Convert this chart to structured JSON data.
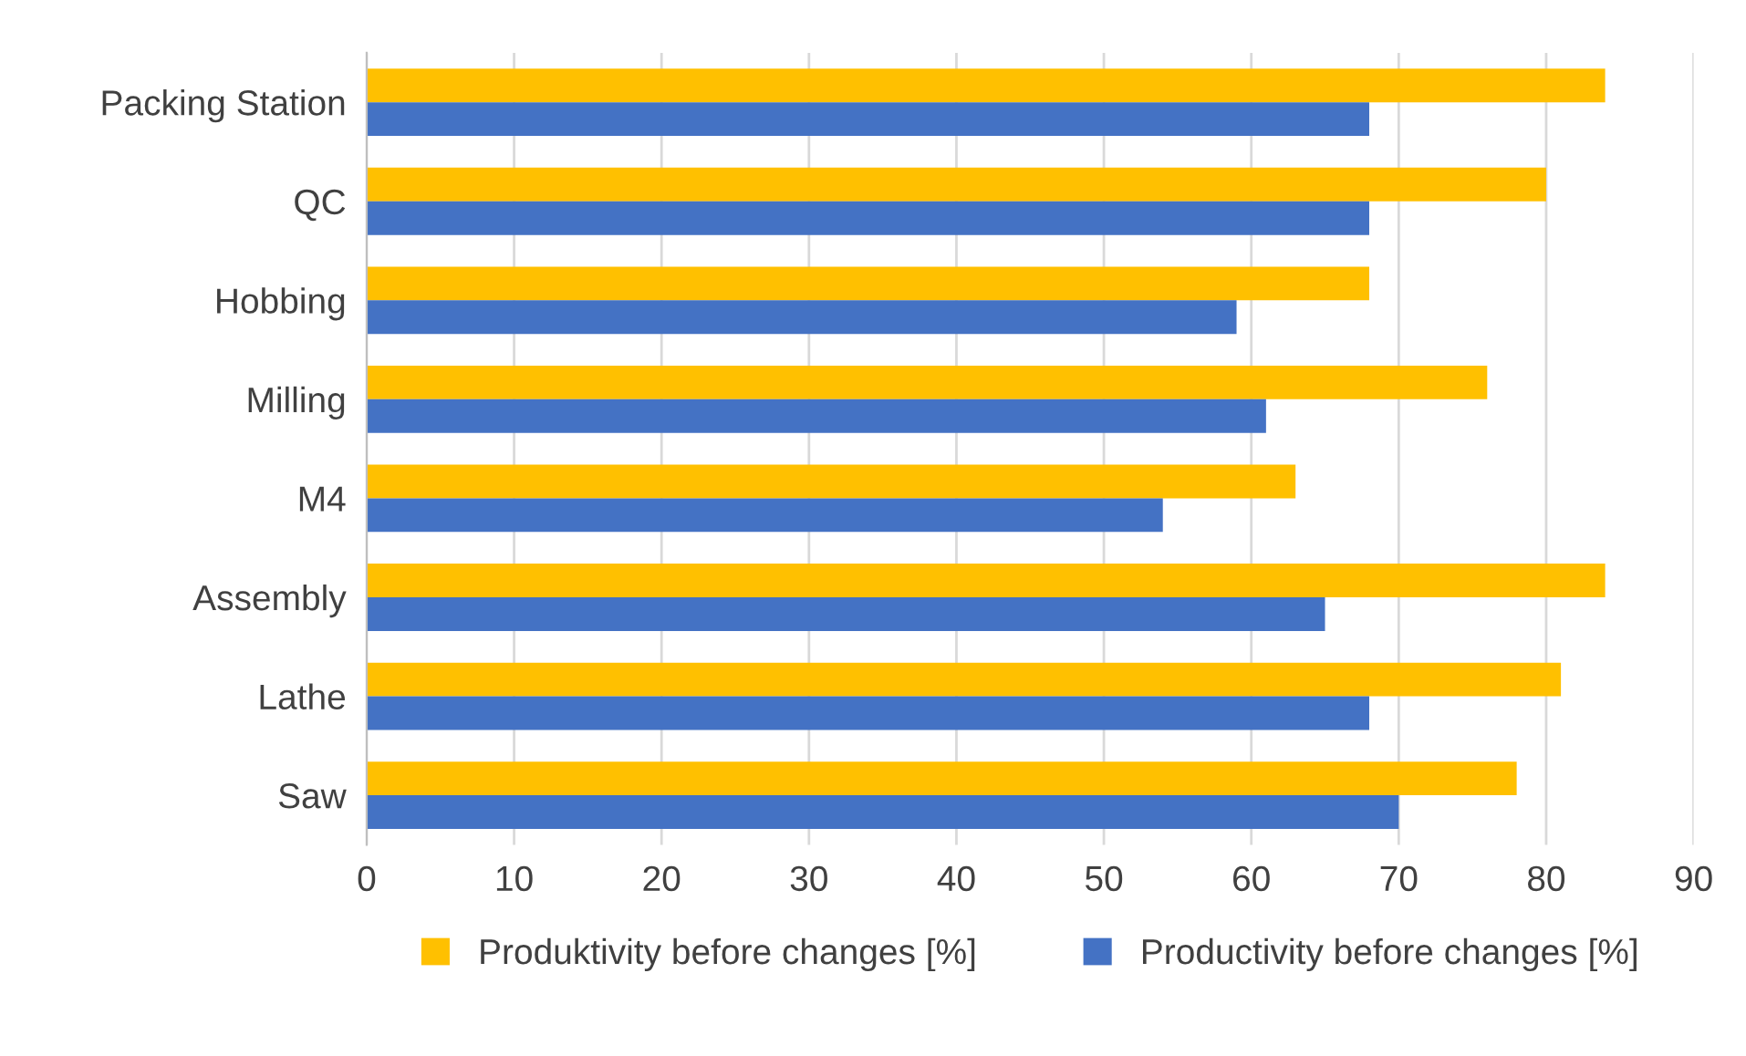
{
  "chart_data": {
    "type": "bar",
    "orientation": "horizontal",
    "categories": [
      "Packing Station",
      "QC",
      "Hobbing",
      "Milling",
      "M4",
      "Assembly",
      "Lathe",
      "Saw"
    ],
    "series": [
      {
        "name": "Produktivity before changes [%]",
        "color": "#ffc000",
        "values": [
          84,
          80,
          68,
          76,
          63,
          84,
          81,
          78
        ]
      },
      {
        "name": "Productivity before changes [%]",
        "color": "#4472c4",
        "values": [
          68,
          68,
          59,
          61,
          54,
          65,
          68,
          70
        ]
      }
    ],
    "xlim": [
      0,
      90
    ],
    "xticks": [
      0,
      10,
      20,
      30,
      40,
      50,
      60,
      70,
      80,
      90
    ],
    "grid": "x",
    "legend": "bottom"
  }
}
